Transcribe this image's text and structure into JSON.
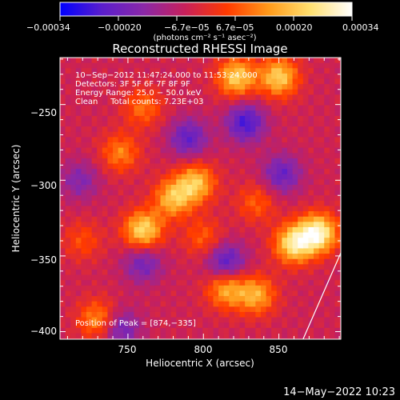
{
  "chart_data": {
    "type": "heatmap",
    "title": "Reconstructed RHESSI Image",
    "xlabel": "Heliocentric X (arcsec)",
    "ylabel": "Heliocentric Y (arcsec)",
    "xlim": [
      705,
      891
    ],
    "ylim": [
      -405,
      -219
    ],
    "x_ticks": [
      750,
      800,
      850
    ],
    "x_tick_labels": [
      "750",
      "800",
      "850"
    ],
    "y_ticks": [
      -250,
      -300,
      -350,
      -400
    ],
    "y_tick_labels": [
      "−250",
      "−300",
      "−350",
      "−400"
    ],
    "colorbar": {
      "range": [
        -0.00034,
        0.00034
      ],
      "tick_labels": [
        "−0.00034",
        "−0.00020",
        "−6.7e−05",
        "6.7e−05",
        "0.00020",
        "0.00034"
      ],
      "unit_label": "(photons cm⁻² s⁻¹ asec⁻²)",
      "colors": [
        "#0000ff",
        "#5a1ecc",
        "#8a28a8",
        "#c8205a",
        "#ff3a00",
        "#ff9a1a",
        "#ffe070",
        "#ffffff"
      ]
    },
    "annotations": {
      "time_line": "10−Sep−2012 11:47:24.000 to 11:53:24.000",
      "detectors_line": "Detectors: 3F 5F 6F 7F 8F 9F",
      "energy_line": "Energy Range: 25.0 − 50.0 keV",
      "method_line": "Clean     Total counts: 7.23E+03",
      "peak_line": "Position of Peak = [874,−335]"
    },
    "bright_sources": [
      {
        "x": 876,
        "y": -335,
        "value": 0.00034
      },
      {
        "x": 860,
        "y": -342,
        "value": 0.0003
      },
      {
        "x": 760,
        "y": -333,
        "value": 0.00028
      },
      {
        "x": 822,
        "y": -232,
        "value": 0.00026
      },
      {
        "x": 850,
        "y": -232,
        "value": 0.00026
      },
      {
        "x": 795,
        "y": -302,
        "value": 0.00024
      },
      {
        "x": 780,
        "y": -312,
        "value": 0.00023
      },
      {
        "x": 815,
        "y": -372,
        "value": 0.00021
      },
      {
        "x": 835,
        "y": -376,
        "value": 0.00021
      },
      {
        "x": 730,
        "y": -392,
        "value": 0.00018
      },
      {
        "x": 745,
        "y": -282,
        "value": 0.00016
      },
      {
        "x": 760,
        "y": -252,
        "value": 0.00014
      },
      {
        "x": 800,
        "y": -338,
        "value": 0.00012
      },
      {
        "x": 835,
        "y": -315,
        "value": 0.00012
      },
      {
        "x": 720,
        "y": -340,
        "value": 0.0001
      }
    ],
    "negative_regions": [
      {
        "x": 828,
        "y": -262,
        "value": -0.00022
      },
      {
        "x": 790,
        "y": -272,
        "value": -0.00018
      },
      {
        "x": 815,
        "y": -354,
        "value": -0.0002
      },
      {
        "x": 760,
        "y": -355,
        "value": -0.00015
      },
      {
        "x": 745,
        "y": -398,
        "value": -0.00016
      },
      {
        "x": 852,
        "y": -296,
        "value": -0.00017
      },
      {
        "x": 718,
        "y": -300,
        "value": -0.00012
      }
    ],
    "limb_line": [
      {
        "x": 866,
        "y": -405
      },
      {
        "x": 891,
        "y": -348
      }
    ],
    "date_stamp": "14−May−2022 10:23"
  }
}
